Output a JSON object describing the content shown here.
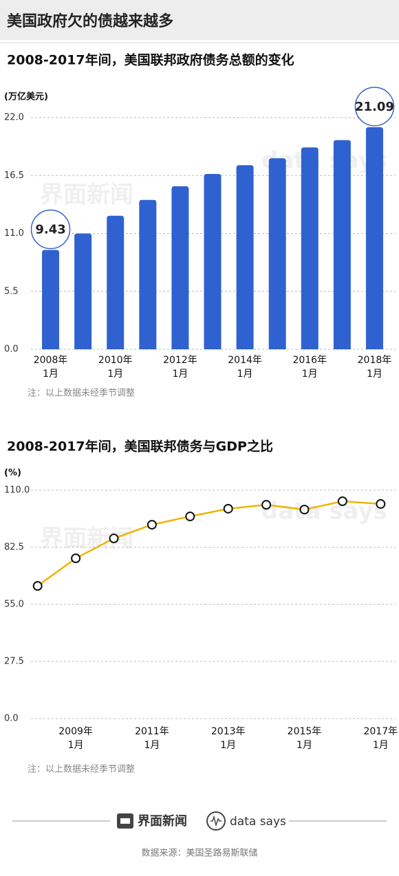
{
  "header": {
    "title": "美国政府欠的债越来越多"
  },
  "chart_data": [
    {
      "type": "bar",
      "title": "2008-2017年间，美国联邦政府债务总额的变化",
      "y_label": "(万亿美元)",
      "categories": [
        [
          "2008年",
          "1月"
        ],
        null,
        [
          "2010年",
          "1月"
        ],
        null,
        [
          "2012年",
          "1月"
        ],
        null,
        [
          "2014年",
          "1月"
        ],
        null,
        [
          "2016年",
          "1月"
        ],
        null,
        [
          "2018年",
          "1月"
        ]
      ],
      "values": [
        9.43,
        10.99,
        12.68,
        14.18,
        15.48,
        16.65,
        17.48,
        18.14,
        19.17,
        19.86,
        21.09
      ],
      "value_labels": [
        "9.43",
        null,
        null,
        null,
        null,
        null,
        null,
        null,
        null,
        null,
        "21.09"
      ],
      "color": "#2f62d0",
      "ylim": [
        0,
        22
      ],
      "yticks": [
        {
          "value": 0,
          "label": "0.0"
        },
        5.5,
        {
          "value": 11,
          "label": "11.0"
        },
        16.5,
        {
          "value": 22,
          "label": "22.0"
        }
      ],
      "grid": true,
      "note": "注：以上数据未经季节调整"
    },
    {
      "type": "line",
      "title": "2008-2017年间，美国联邦债务与GDP之比",
      "y_label": "(%)",
      "categories": [
        null,
        [
          "2009年",
          "1月"
        ],
        null,
        [
          "2011年",
          "1月"
        ],
        null,
        [
          "2013年",
          "1月"
        ],
        null,
        [
          "2015年",
          "1月"
        ],
        null,
        [
          "2017年",
          "1月"
        ]
      ],
      "values": [
        63.9,
        77.2,
        86.8,
        93.4,
        97.4,
        101.1,
        103.0,
        100.7,
        104.7,
        103.4
      ],
      "color": "#f0b400",
      "ylim": [
        0,
        110
      ],
      "yticks": [
        {
          "value": 0,
          "label": "0.0"
        },
        27.5,
        {
          "value": 55,
          "label": "55.0"
        },
        82.5,
        {
          "value": 110,
          "label": "110.0"
        }
      ],
      "grid": true,
      "note": "注：以上数据未经季节调整"
    }
  ],
  "footer": {
    "brand": "界面新闻",
    "brand2": "data says",
    "source": "数据来源：美国圣路易斯联储"
  }
}
